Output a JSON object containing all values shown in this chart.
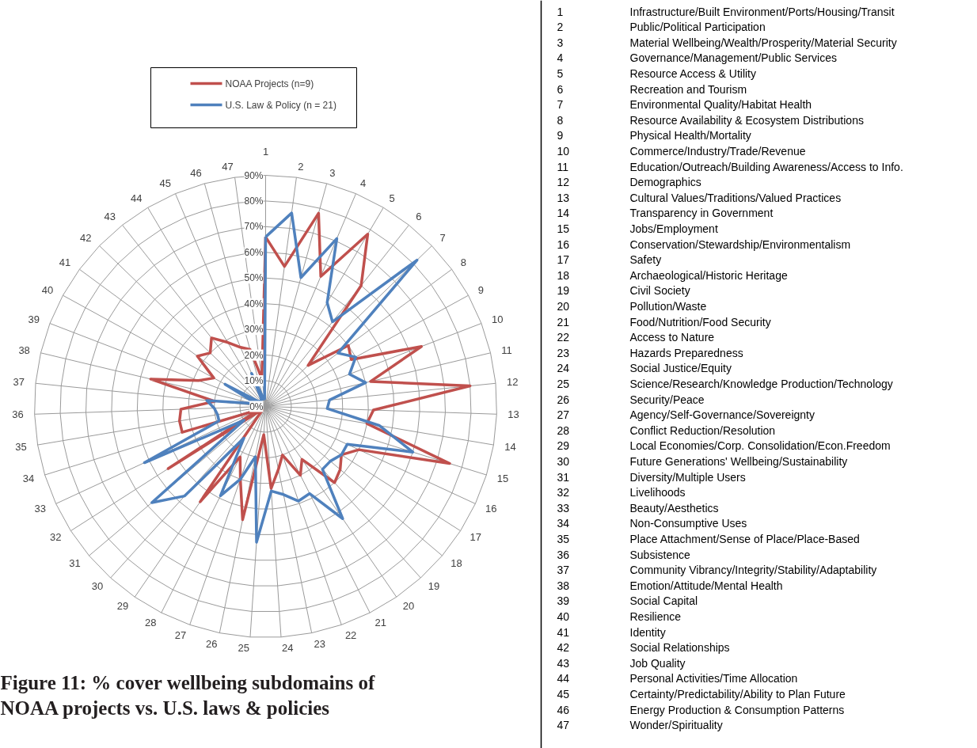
{
  "chart_data": {
    "type": "radar",
    "title": "Figure 11: % cover wellbeing subdomains of NOAA projects vs. U.S. laws & policies",
    "categories": [
      "1",
      "2",
      "3",
      "4",
      "5",
      "6",
      "7",
      "8",
      "9",
      "10",
      "11",
      "12",
      "13",
      "14",
      "15",
      "16",
      "17",
      "18",
      "19",
      "20",
      "21",
      "22",
      "23",
      "24",
      "25",
      "26",
      "27",
      "28",
      "29",
      "30",
      "31",
      "32",
      "33",
      "34",
      "35",
      "36",
      "37",
      "38",
      "39",
      "40",
      "41",
      "42",
      "43",
      "44",
      "45",
      "46",
      "47"
    ],
    "series": [
      {
        "name": "NOAA Projects  (n=9)",
        "color": "#c0504d",
        "values": [
          66,
          55,
          78,
          55,
          78,
          60,
          23,
          40,
          38,
          65,
          42,
          80,
          42,
          40,
          75,
          40,
          35,
          38,
          40,
          25,
          30,
          20,
          25,
          32,
          11,
          45,
          30,
          22,
          45,
          2,
          2,
          45,
          3,
          34,
          34,
          33,
          20,
          46,
          28,
          23,
          33,
          30,
          34,
          29,
          25,
          23,
          11
        ]
      },
      {
        "name": "U.S. Law & Policy (n = 21)",
        "color": "#4f81bd",
        "values": [
          66,
          76,
          52,
          71,
          47,
          42,
          82,
          35,
          40,
          35,
          40,
          25,
          24,
          45,
          60,
          35,
          35,
          33,
          33,
          53,
          38,
          39,
          35,
          33,
          53,
          20,
          30,
          39,
          15,
          47,
          58,
          10,
          52,
          19,
          19,
          20,
          23,
          5,
          5,
          18,
          3,
          3,
          3,
          3,
          14,
          3,
          3
        ]
      }
    ],
    "ylim": [
      0,
      90
    ],
    "yticks": [
      {
        "value": 0,
        "label": "0%"
      },
      {
        "value": 10,
        "label": "10%"
      },
      {
        "value": 20,
        "label": "20%"
      },
      {
        "value": 30,
        "label": "30%"
      },
      {
        "value": 40,
        "label": "40%"
      },
      {
        "value": 50,
        "label": "50%"
      },
      {
        "value": 60,
        "label": "60%"
      },
      {
        "value": 70,
        "label": "70%"
      },
      {
        "value": 80,
        "label": "80%"
      },
      {
        "value": 90,
        "label": "90%"
      }
    ],
    "grid": true,
    "legend": "top",
    "annotations": [
      "Infrastructure/Built Environment/Ports/Housing/Transit",
      "Public/Political Participation",
      "Material Wellbeing/Wealth/Prosperity/Material Security",
      "Governance/Management/Public Services",
      "Resource Access & Utility",
      "Recreation and Tourism",
      "Environmental Quality/Habitat Health",
      "Resource Availability & Ecosystem Distributions",
      "Physical Health/Mortality",
      "Commerce/Industry/Trade/Revenue",
      "Education/Outreach/Building Awareness/Access to Info.",
      "Demographics",
      "Cultural Values/Traditions/Valued Practices",
      "Transparency in Government",
      "Jobs/Employment",
      "Conservation/Stewardship/Environmentalism",
      "Safety",
      "Archaeological/Historic Heritage",
      "Civil Society",
      "Pollution/Waste",
      "Food/Nutrition/Food Security",
      "Access to Nature",
      "Hazards Preparedness",
      "Social Justice/Equity",
      "Science/Research/Knowledge Production/Technology",
      "Security/Peace",
      "Agency/Self-Governance/Sovereignty",
      "Conflict Reduction/Resolution",
      "Local Economies/Corp. Consolidation/Econ.Freedom",
      "Future Generations' Wellbeing/Sustainability",
      "Diversity/Multiple Users",
      "Livelihoods",
      "Beauty/Aesthetics",
      "Non-Consumptive Uses",
      "Place Attachment/Sense of Place/Place-Based",
      "Subsistence",
      "Community Vibrancy/Integrity/Stability/Adaptability",
      "Emotion/Attitude/Mental Health",
      "Social Capital",
      "Resilience",
      "Identity",
      "Social Relationships",
      "Job Quality",
      "Personal Activities/Time Allocation",
      "Certainty/Predictability/Ability to Plan Future",
      "Energy Production & Consumption Patterns",
      "Wonder/Spirituality"
    ]
  }
}
